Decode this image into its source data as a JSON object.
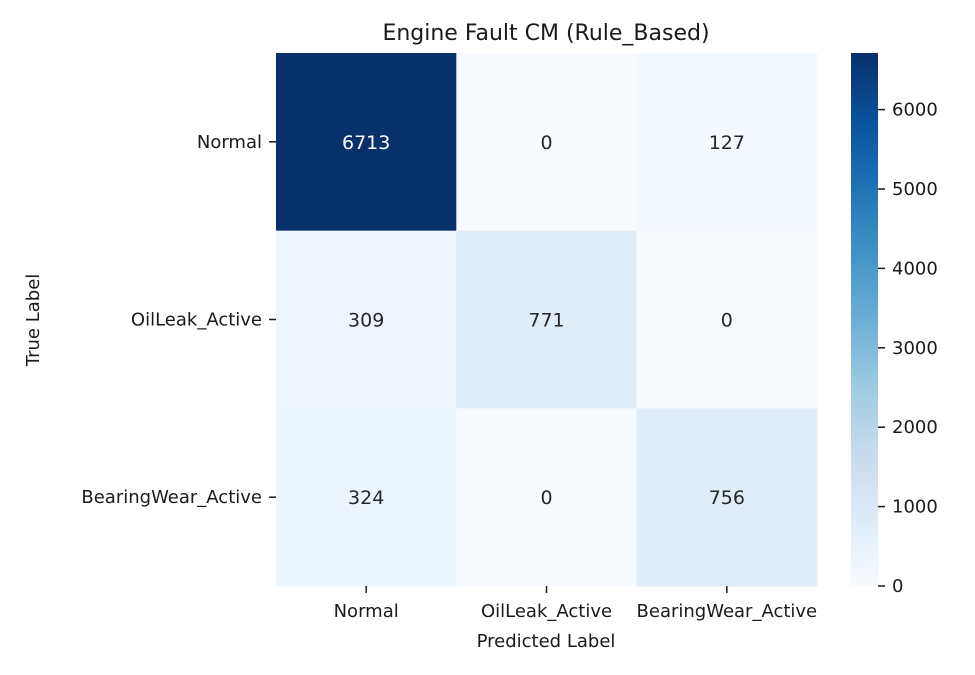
{
  "chart_data": {
    "type": "heatmap",
    "title": "Engine Fault CM (Rule_Based)",
    "xlabel": "Predicted Label",
    "ylabel": "True Label",
    "rows": [
      "Normal",
      "OilLeak_Active",
      "BearingWear_Active"
    ],
    "columns": [
      "Normal",
      "OilLeak_Active",
      "BearingWear_Active"
    ],
    "values": [
      [
        6713,
        0,
        127
      ],
      [
        309,
        771,
        0
      ],
      [
        324,
        0,
        756
      ]
    ],
    "colorbar": {
      "range": [
        0,
        6713
      ],
      "ticks": [
        0,
        1000,
        2000,
        3000,
        4000,
        5000,
        6000
      ],
      "colormap": "Blues"
    },
    "colors": {
      "low": "#f7fbff",
      "high": "#08306b",
      "text_dark": "#262626",
      "text_light": "#ffffff"
    }
  }
}
